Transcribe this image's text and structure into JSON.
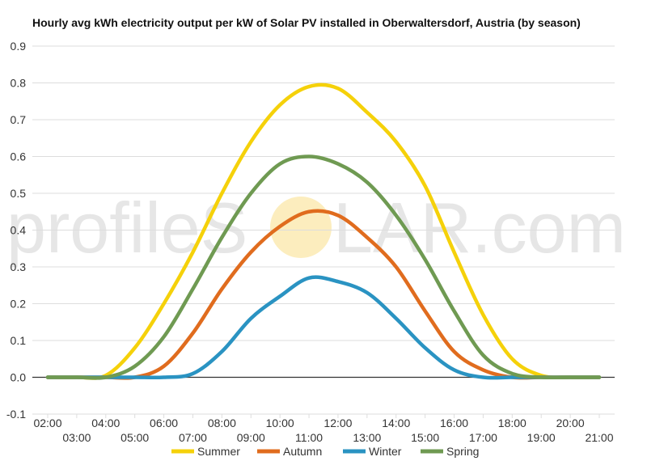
{
  "colors": {
    "background": "#ffffff",
    "gridline": "#dddddd",
    "zero_line": "#333333",
    "watermark_text": "#e6e6e6",
    "watermark_sun": "#fbe7a8"
  },
  "watermark": {
    "part1": "profileS",
    "part2": "LAR.com"
  },
  "chart_data": {
    "type": "line",
    "title": "Hourly avg kWh electricity output per kW of Solar PV installed in Oberwaltersdorf, Austria (by season)",
    "xlabel": "",
    "ylabel": "",
    "grid": true,
    "legend_position": "bottom",
    "ylim": [
      -0.1,
      0.9
    ],
    "y_ticks": [
      "-0.1",
      "0.0",
      "0.1",
      "0.2",
      "0.3",
      "0.4",
      "0.5",
      "0.6",
      "0.7",
      "0.8",
      "0.9"
    ],
    "y_tick_values": [
      -0.1,
      0.0,
      0.1,
      0.2,
      0.3,
      0.4,
      0.5,
      0.6,
      0.7,
      0.8,
      0.9
    ],
    "categories": [
      "02:00",
      "03:00",
      "04:00",
      "05:00",
      "06:00",
      "07:00",
      "08:00",
      "09:00",
      "10:00",
      "11:00",
      "12:00",
      "13:00",
      "14:00",
      "15:00",
      "16:00",
      "17:00",
      "18:00",
      "19:00",
      "20:00",
      "21:00"
    ],
    "series": [
      {
        "name": "Summer",
        "color": "#f5d10a",
        "values": [
          0,
          0,
          0.005,
          0.08,
          0.2,
          0.34,
          0.5,
          0.64,
          0.74,
          0.79,
          0.785,
          0.72,
          0.64,
          0.52,
          0.34,
          0.17,
          0.05,
          0.005,
          0,
          0
        ]
      },
      {
        "name": "Autumn",
        "color": "#e06c1e",
        "values": [
          0,
          0,
          0,
          0,
          0.03,
          0.12,
          0.24,
          0.34,
          0.41,
          0.45,
          0.44,
          0.38,
          0.3,
          0.18,
          0.07,
          0.02,
          0,
          0,
          0,
          0
        ]
      },
      {
        "name": "Winter",
        "color": "#2a93c2",
        "values": [
          0,
          0,
          0,
          0,
          0,
          0.01,
          0.07,
          0.16,
          0.22,
          0.27,
          0.26,
          0.23,
          0.16,
          0.08,
          0.02,
          0,
          0,
          0,
          0,
          0
        ]
      },
      {
        "name": "Spring",
        "color": "#6f9a52",
        "values": [
          0,
          0,
          0,
          0.03,
          0.11,
          0.24,
          0.38,
          0.5,
          0.58,
          0.6,
          0.58,
          0.53,
          0.44,
          0.32,
          0.18,
          0.06,
          0.01,
          0,
          0,
          0
        ]
      }
    ]
  }
}
